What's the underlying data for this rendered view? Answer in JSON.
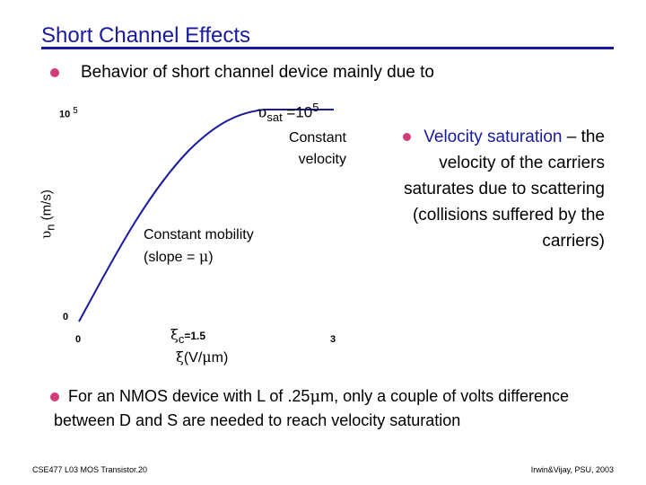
{
  "title": "Short Channel Effects",
  "bullet1": "Behavior of short channel device mainly due to",
  "graph": {
    "vsat_symbol": "υ",
    "vsat_sub": "sat",
    "vsat_eq": " =10",
    "vsat_exp": "5",
    "constant_velocity_line1": "Constant",
    "constant_velocity_line2": "velocity",
    "constant_mobility_line1": "Constant mobility",
    "constant_mobility_pre": "(slope = ",
    "mu": "μ",
    "constant_mobility_post": ")",
    "ylabel_symbol": "υ",
    "ylabel_sub": "n",
    "ylabel_unit": " (m/s)",
    "y_tick_top": "10",
    "y_tick_top_exp": "5",
    "y_tick_zero": "0",
    "x_tick_zero": "0",
    "x_tick_three": "3",
    "xi_symbol": "ξ",
    "xi_sub": "c",
    "xi_value": "=1.5",
    "xlabel_symbol": "ξ",
    "xlabel_unit": "(V/",
    "xlabel_mu": "μ",
    "xlabel_end": "m)",
    "curve_color": "#1a1a9e"
  },
  "right_bullet": {
    "lead": "Velocity saturation",
    "body": "– the velocity of the carriers saturates due to scattering (collisions suffered by the carriers)"
  },
  "bullet3": {
    "pre": "For an NMOS device with L of .25",
    "mu": "μ",
    "post": "m, only a couple of volts difference between D and S are needed to reach velocity saturation"
  },
  "footer": {
    "left": "CSE477 L03 MOS Transistor.20",
    "right": "Irwin&Vijay, PSU, 2003"
  },
  "colors": {
    "title": "#1a1a9e",
    "bullet": "#d23a78"
  }
}
